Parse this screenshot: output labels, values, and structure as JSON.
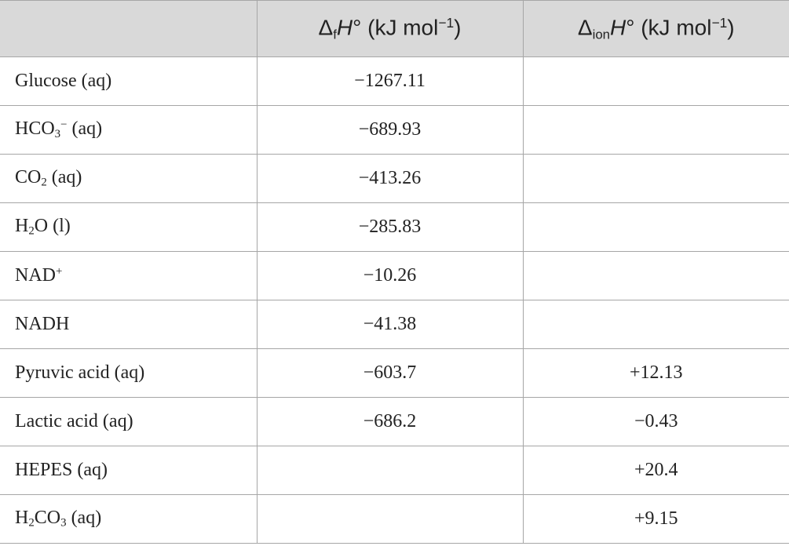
{
  "table": {
    "header": [
      null,
      [
        {
          "text": "Δ"
        },
        {
          "text": "f",
          "style": "sub"
        },
        {
          "text": "H",
          "style": "italic"
        },
        {
          "text": "° (kJ mol"
        },
        {
          "text": "−1",
          "style": "sup"
        },
        {
          "text": ")"
        }
      ],
      [
        {
          "text": "Δ"
        },
        {
          "text": "ion",
          "style": "sub"
        },
        {
          "text": "H",
          "style": "italic"
        },
        {
          "text": "° (kJ mol"
        },
        {
          "text": "−1",
          "style": "sup"
        },
        {
          "text": ")"
        }
      ]
    ],
    "rows": [
      [
        "Glucose (aq)",
        "−1267.11",
        null
      ],
      [
        [
          {
            "text": "HCO"
          },
          {
            "text": "3",
            "style": "sub"
          },
          {
            "text": "−",
            "style": "sup"
          },
          {
            "text": " (aq)"
          }
        ],
        "−689.93",
        null
      ],
      [
        [
          {
            "text": "CO"
          },
          {
            "text": "2",
            "style": "sub"
          },
          {
            "text": " (aq)"
          }
        ],
        "−413.26",
        null
      ],
      [
        [
          {
            "text": "H"
          },
          {
            "text": "2",
            "style": "sub"
          },
          {
            "text": "O (l)"
          }
        ],
        "−285.83",
        null
      ],
      [
        [
          {
            "text": "NAD"
          },
          {
            "text": "+",
            "style": "sup"
          }
        ],
        "−10.26",
        null
      ],
      [
        "NADH",
        "−41.38",
        null
      ],
      [
        "Pyruvic acid (aq)",
        "−603.7",
        "+12.13"
      ],
      [
        "Lactic acid (aq)",
        "−686.2",
        "−0.43"
      ],
      [
        "HEPES (aq)",
        null,
        "+20.4"
      ],
      [
        [
          {
            "text": "H"
          },
          {
            "text": "2",
            "style": "sub"
          },
          {
            "text": "CO"
          },
          {
            "text": "3",
            "style": "sub"
          },
          {
            "text": " (aq)"
          }
        ],
        null,
        "+9.15"
      ]
    ]
  }
}
